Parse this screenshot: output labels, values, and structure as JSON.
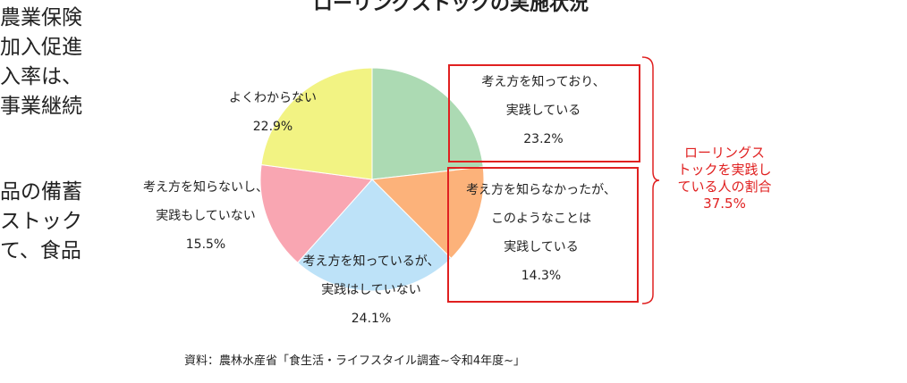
{
  "body_text": {
    "block1": [
      "農業保険",
      "加入促進",
      "入率は、",
      "事業継続"
    ],
    "block2": [
      "品の備蓄",
      "ストック",
      "て、食品"
    ]
  },
  "chart_data": {
    "type": "pie",
    "title": "ローリングストックの実施状況",
    "start": "top",
    "direction": "clockwise",
    "slices": [
      {
        "label": [
          "考え方を知っており、",
          "実践している"
        ],
        "value": 23.2,
        "value_label": "23.2%",
        "color": "#acdab3"
      },
      {
        "label": [
          "考え方を知らなかったが、",
          "このようなことは",
          "実践している"
        ],
        "value": 14.3,
        "value_label": "14.3%",
        "color": "#fcb27a"
      },
      {
        "label": [
          "考え方を知っているが、",
          "実践はしていない"
        ],
        "value": 24.1,
        "value_label": "24.1%",
        "color": "#bde2f8"
      },
      {
        "label": [
          "考え方を知らないし、",
          "実践もしていない"
        ],
        "value": 15.5,
        "value_label": "15.5%",
        "color": "#f9a6b2"
      },
      {
        "label": [
          "よくわからない"
        ],
        "value": 22.9,
        "value_label": "22.9%",
        "color": "#f2f383"
      }
    ],
    "annotation": {
      "text": [
        "ローリングス",
        "トックを実践し",
        "ている人の割合",
        "37.5%"
      ],
      "color": "#e02020"
    },
    "source": "資料：農林水産省「食生活・ライフスタイル調査~令和4年度~」"
  }
}
